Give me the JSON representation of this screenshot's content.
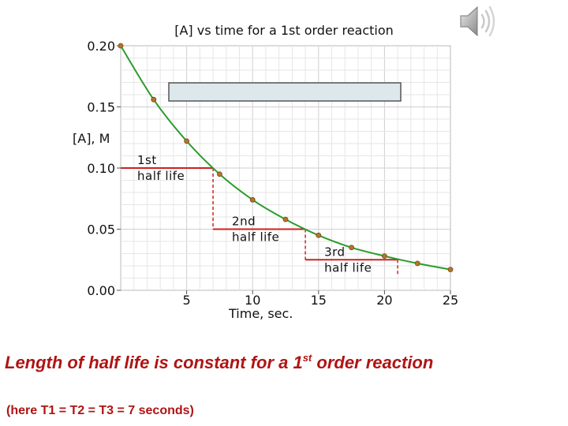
{
  "chart_data": {
    "type": "line",
    "title": "[A] vs time for a 1st order reaction",
    "xlabel": "Time, sec.",
    "ylabel": "[A], M",
    "xlim": [
      0,
      25
    ],
    "ylim": [
      0,
      0.2
    ],
    "x_ticks": [
      "5",
      "10",
      "15",
      "20",
      "25"
    ],
    "y_ticks": [
      "0.20",
      "0.15",
      "0.10",
      "0.05",
      "0.00"
    ],
    "grid": true,
    "line_color": "#2c9c2c",
    "point_color": "#b8742a",
    "halflife_color": "#cc2222",
    "points": [
      {
        "x": 0,
        "y": 0.2
      },
      {
        "x": 2.5,
        "y": 0.156
      },
      {
        "x": 5,
        "y": 0.122
      },
      {
        "x": 7.5,
        "y": 0.095
      },
      {
        "x": 10,
        "y": 0.074
      },
      {
        "x": 12.5,
        "y": 0.058
      },
      {
        "x": 15,
        "y": 0.045
      },
      {
        "x": 17.5,
        "y": 0.035
      },
      {
        "x": 20,
        "y": 0.028
      },
      {
        "x": 22.5,
        "y": 0.022
      },
      {
        "x": 25,
        "y": 0.017
      }
    ],
    "half_lives": [
      {
        "line1": "1st",
        "line2": "half life",
        "x_start": 0,
        "x_end": 7,
        "y_from": 0.1,
        "y_to": 0.05
      },
      {
        "line1": "2nd",
        "line2": "half life",
        "x_start": 7,
        "x_end": 14,
        "y_from": 0.05,
        "y_to": 0.025
      },
      {
        "line1": "3rd",
        "line2": "half life",
        "x_start": 14,
        "x_end": 21,
        "y_from": 0.025,
        "y_to": 0.0125
      }
    ]
  },
  "caption": {
    "before": "Length of half life is constant for a 1",
    "sup": "st",
    "after": " order reaction"
  },
  "subcaption": "(here T1 = T2 = T3 = 7 seconds)",
  "icons": {
    "speaker": "speaker-icon"
  }
}
